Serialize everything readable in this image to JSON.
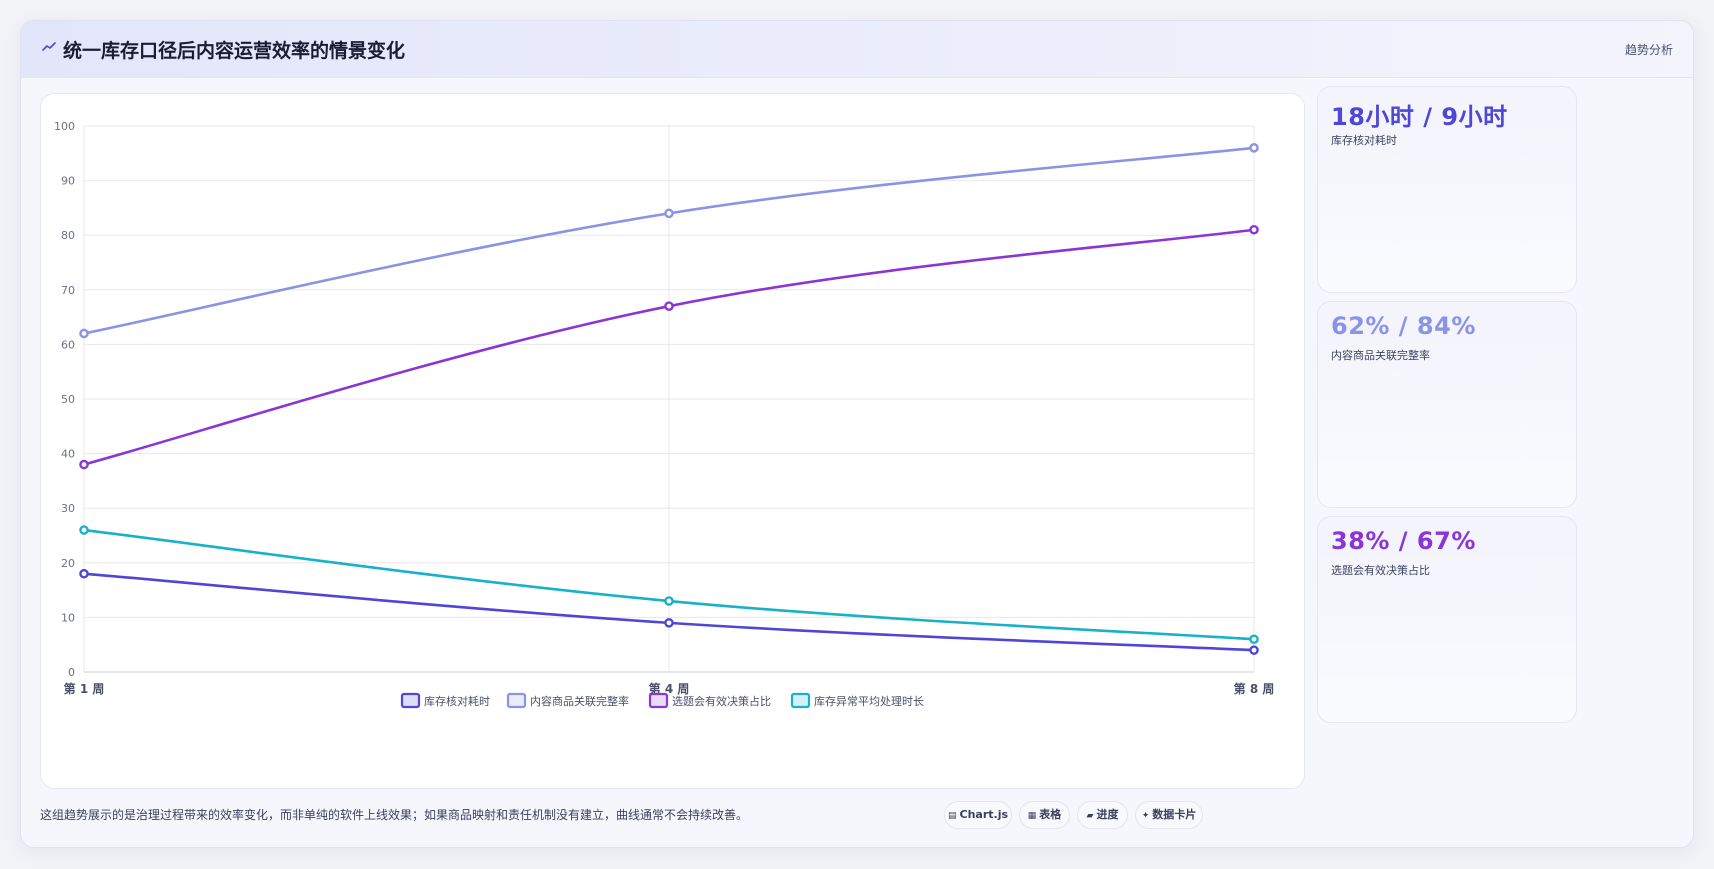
{
  "header": {
    "title": "统一库存口径后内容运营效率的情景变化",
    "tag": "趋势分析",
    "icon": "trend-icon"
  },
  "chart_data": {
    "type": "line",
    "categories": [
      "第 1 周",
      "第 4 周",
      "第 8 周"
    ],
    "ylim": [
      0,
      100
    ],
    "yticks": [
      0,
      10,
      20,
      30,
      40,
      50,
      60,
      70,
      80,
      90,
      100
    ],
    "grid": true,
    "legend_position": "bottom",
    "series": [
      {
        "name": "库存核对耗时",
        "values": [
          18,
          9,
          4
        ],
        "color": "#4f46d6"
      },
      {
        "name": "内容商品关联完整率",
        "values": [
          62,
          84,
          96
        ],
        "color": "#8a93e6"
      },
      {
        "name": "选题会有效决策占比",
        "values": [
          38,
          67,
          81
        ],
        "color": "#8a35d6"
      },
      {
        "name": "库存异常平均处理时长",
        "values": [
          26,
          13,
          6
        ],
        "color": "#17b1c8"
      }
    ]
  },
  "stats": [
    {
      "value": "18小时 / 9小时",
      "label": "库存核对耗时",
      "color": "#4f46d6"
    },
    {
      "value": "62% / 84%",
      "label": "内容商品关联完整率",
      "color": "#8a93e6"
    },
    {
      "value": "38% / 67%",
      "label": "选题会有效决策占比",
      "color": "#8a35d6"
    }
  ],
  "footnote": "这组趋势展示的是治理过程带来的效率变化，而非单纯的软件上线效果；如果商品映射和责任机制没有建立，曲线通常不会持续改善。",
  "pills": [
    {
      "icon": "▤",
      "label": "Chart.js"
    },
    {
      "icon": "▦",
      "label": "表格"
    },
    {
      "icon": "▰",
      "label": "进度"
    },
    {
      "icon": "✦",
      "label": "数据卡片"
    }
  ]
}
